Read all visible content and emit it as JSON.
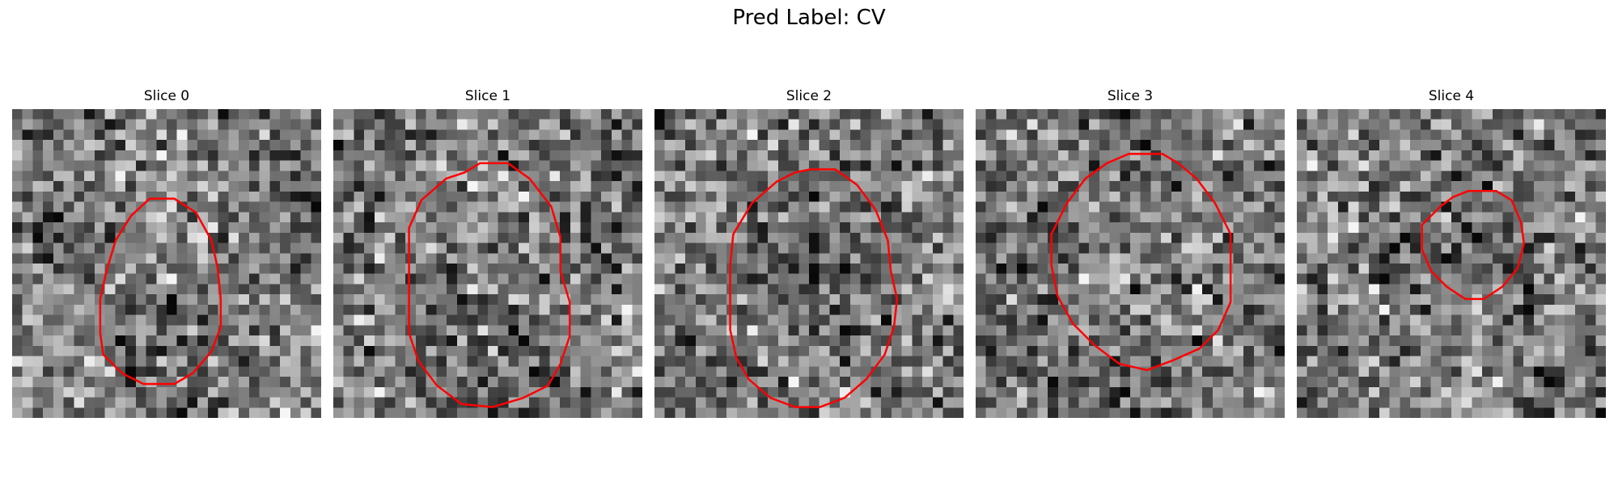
{
  "figure": {
    "suptitle": "Pred Label: CV"
  },
  "contour_color": "#ff0000",
  "panels": [
    {
      "title": "Slice 0",
      "seed": 11,
      "contour": [
        [
          44.5,
          29.0
        ],
        [
          52.5,
          29.0
        ],
        [
          59.5,
          33.5
        ],
        [
          64.5,
          42.5
        ],
        [
          66.5,
          51.5
        ],
        [
          67.5,
          61.5
        ],
        [
          67.5,
          70.5
        ],
        [
          64.5,
          78.5
        ],
        [
          58.5,
          85.5
        ],
        [
          52.5,
          89.0
        ],
        [
          42.5,
          89.0
        ],
        [
          35.5,
          85.5
        ],
        [
          29.5,
          79.5
        ],
        [
          28.5,
          72.5
        ],
        [
          28.5,
          61.5
        ],
        [
          30.5,
          52.5
        ],
        [
          33.5,
          42.5
        ],
        [
          38.5,
          34.5
        ]
      ]
    },
    {
      "title": "Slice 1",
      "seed": 23,
      "contour": [
        [
          47.5,
          17.5
        ],
        [
          56.5,
          17.5
        ],
        [
          63.5,
          22.5
        ],
        [
          70.5,
          31.5
        ],
        [
          73.5,
          41.5
        ],
        [
          73.5,
          52.5
        ],
        [
          76.5,
          62.5
        ],
        [
          76.5,
          73.5
        ],
        [
          73.5,
          82.5
        ],
        [
          69.5,
          89.5
        ],
        [
          61.5,
          93.5
        ],
        [
          51.5,
          96.5
        ],
        [
          41.5,
          95.5
        ],
        [
          33.5,
          89.5
        ],
        [
          27.5,
          81.5
        ],
        [
          24.5,
          72.5
        ],
        [
          24.5,
          60.5
        ],
        [
          24.5,
          49.5
        ],
        [
          24.5,
          38.5
        ],
        [
          28.5,
          29.5
        ],
        [
          36.5,
          22.5
        ],
        [
          42.5,
          20.5
        ]
      ]
    },
    {
      "title": "Slice 2",
      "seed": 37,
      "contour": [
        [
          50.5,
          19.5
        ],
        [
          58.5,
          19.5
        ],
        [
          65.5,
          24.5
        ],
        [
          71.5,
          32.5
        ],
        [
          75.5,
          42.5
        ],
        [
          76.5,
          52.5
        ],
        [
          78.5,
          61.5
        ],
        [
          77.5,
          70.5
        ],
        [
          74.5,
          79.5
        ],
        [
          68.5,
          87.5
        ],
        [
          61.5,
          93.5
        ],
        [
          53.5,
          96.5
        ],
        [
          45.5,
          96.5
        ],
        [
          37.5,
          93.5
        ],
        [
          30.5,
          87.5
        ],
        [
          26.5,
          80.5
        ],
        [
          24.5,
          71.5
        ],
        [
          24.5,
          61.5
        ],
        [
          24.5,
          50.5
        ],
        [
          25.5,
          40.5
        ],
        [
          31.5,
          30.5
        ],
        [
          39.5,
          23.5
        ],
        [
          45.5,
          20.5
        ]
      ]
    },
    {
      "title": "Slice 3",
      "seed": 53,
      "contour": [
        [
          49.5,
          14.5
        ],
        [
          60.5,
          14.5
        ],
        [
          65.5,
          17.5
        ],
        [
          71.5,
          22.5
        ],
        [
          77.5,
          30.5
        ],
        [
          82.5,
          40.5
        ],
        [
          82.5,
          52.5
        ],
        [
          82.5,
          62.5
        ],
        [
          78.5,
          71.5
        ],
        [
          72.5,
          77.5
        ],
        [
          63.5,
          81.5
        ],
        [
          55.5,
          84.5
        ],
        [
          46.5,
          82.5
        ],
        [
          38.5,
          76.5
        ],
        [
          31.5,
          69.5
        ],
        [
          26.5,
          60.5
        ],
        [
          24.5,
          50.5
        ],
        [
          24.5,
          40.5
        ],
        [
          29.5,
          30.5
        ],
        [
          35.5,
          22.5
        ],
        [
          42.5,
          17.5
        ]
      ]
    },
    {
      "title": "Slice 4",
      "seed": 71,
      "contour": [
        [
          55.5,
          26.5
        ],
        [
          64.5,
          26.5
        ],
        [
          69.5,
          29.5
        ],
        [
          72.5,
          36.5
        ],
        [
          73.5,
          43.5
        ],
        [
          71.5,
          51.5
        ],
        [
          66.5,
          57.5
        ],
        [
          60.5,
          61.5
        ],
        [
          54.5,
          61.5
        ],
        [
          48.5,
          57.5
        ],
        [
          43.5,
          52.5
        ],
        [
          40.5,
          45.5
        ],
        [
          40.5,
          37.5
        ],
        [
          46.5,
          31.5
        ],
        [
          50.5,
          28.5
        ]
      ]
    }
  ]
}
